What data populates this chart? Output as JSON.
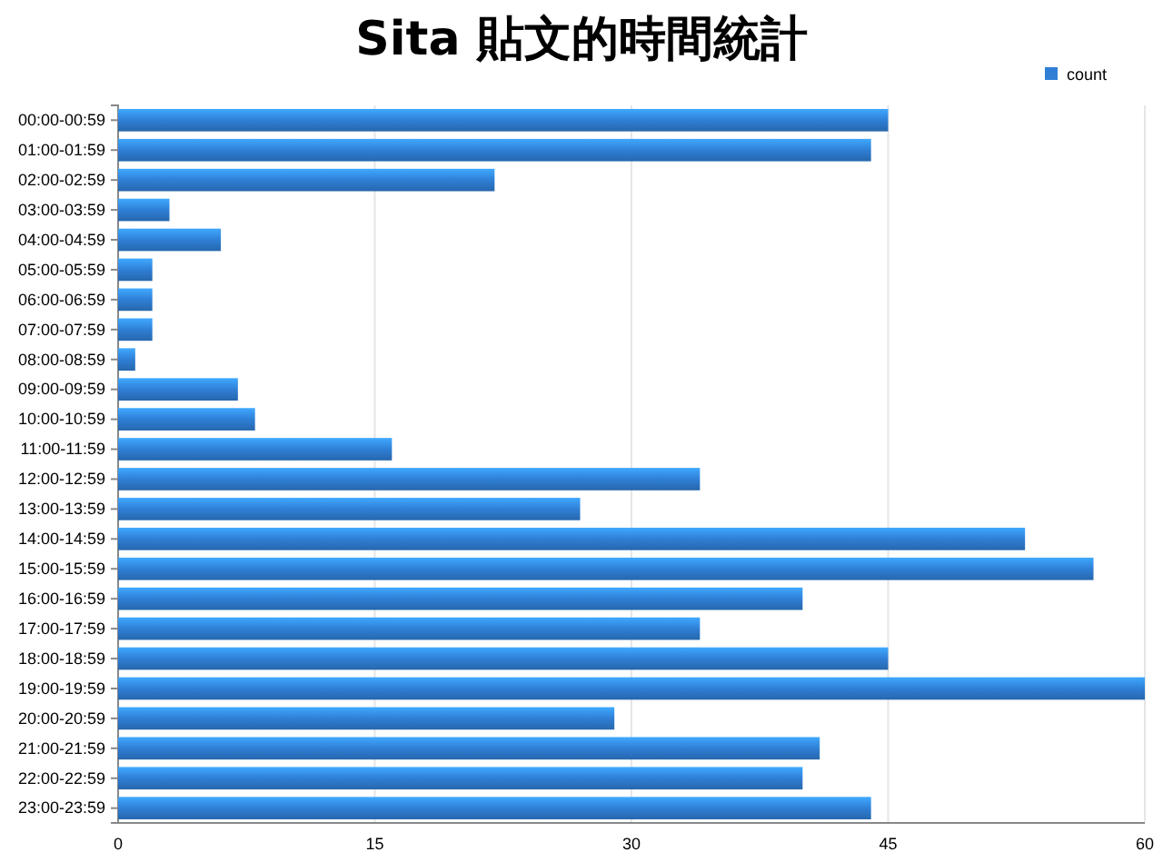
{
  "chart_data": {
    "type": "bar",
    "orientation": "horizontal",
    "title": "Sita 貼文的時間統計",
    "categories": [
      "00:00-00:59",
      "01:00-01:59",
      "02:00-02:59",
      "03:00-03:59",
      "04:00-04:59",
      "05:00-05:59",
      "06:00-06:59",
      "07:00-07:59",
      "08:00-08:59",
      "09:00-09:59",
      "10:00-10:59",
      "11:00-11:59",
      "12:00-12:59",
      "13:00-13:59",
      "14:00-14:59",
      "15:00-15:59",
      "16:00-16:59",
      "17:00-17:59",
      "18:00-18:59",
      "19:00-19:59",
      "20:00-20:59",
      "21:00-21:59",
      "22:00-22:59",
      "23:00-23:59"
    ],
    "series": [
      {
        "name": "count",
        "color": "#2f7fd6",
        "values": [
          45,
          44,
          22,
          3,
          6,
          2,
          2,
          2,
          1,
          7,
          8,
          16,
          34,
          27,
          53,
          57,
          40,
          34,
          45,
          60,
          29,
          41,
          40,
          44
        ]
      }
    ],
    "xlim": [
      0,
      60
    ],
    "xticks": [
      0,
      15,
      30,
      45,
      60
    ],
    "grid": "x",
    "legend": "top right"
  }
}
